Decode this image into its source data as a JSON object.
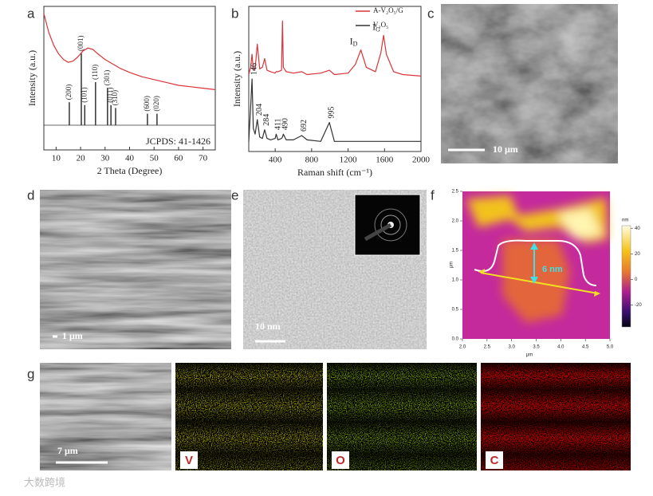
{
  "panel_labels": [
    "a",
    "b",
    "c",
    "d",
    "e",
    "f",
    "g"
  ],
  "chart_data": [
    {
      "type": "line",
      "xlabel": "2 Theta (Degree)",
      "ylabel": "Intensity (a.u.)",
      "xlim": [
        5,
        75
      ],
      "ylim": [
        0,
        100
      ],
      "xticks": [
        10,
        20,
        30,
        40,
        50,
        60,
        70
      ],
      "series": [
        {
          "color": "#d9343a",
          "x": [
            5,
            7,
            9,
            11,
            13,
            15,
            17,
            19,
            21,
            23,
            25,
            27,
            30,
            33,
            36,
            40,
            45,
            50,
            55,
            60,
            65,
            70,
            75
          ],
          "values": [
            95,
            82,
            73,
            67,
            63,
            61,
            62,
            65,
            69,
            71,
            70,
            67,
            63,
            60,
            57,
            54,
            51,
            49,
            47,
            45,
            44,
            43,
            42
          ]
        }
      ],
      "reference": {
        "name": "JCPDS: 41-1426",
        "color": "#333",
        "x": [
          15.4,
          20.3,
          21.7,
          26.1,
          31.0,
          32.4,
          34.3,
          47.3,
          51.2
        ],
        "values": [
          16,
          50,
          14,
          30,
          26,
          14,
          12,
          8,
          8
        ],
        "labels": [
          "(200)",
          "(001)",
          "(101)",
          "(110)",
          "(301)",
          "(011)",
          "(310)",
          "(600)",
          "(020)"
        ]
      }
    },
    {
      "type": "line",
      "xlabel": "Raman shift (cm⁻¹)",
      "ylabel": "Intensity (a.u.)",
      "xlim": [
        110,
        2000
      ],
      "ylim": [
        0,
        100
      ],
      "xticks": [
        400,
        800,
        1200,
        1600,
        2000
      ],
      "x": [
        110,
        130,
        146,
        160,
        180,
        204,
        230,
        260,
        284,
        310,
        350,
        400,
        411,
        430,
        470,
        480,
        490,
        520,
        600,
        692,
        750,
        900,
        995,
        1050,
        1200,
        1280,
        1340,
        1400,
        1500,
        1560,
        1590,
        1620,
        1700,
        1800,
        2000
      ],
      "series": [
        {
          "name": "A-V₂O₅/G",
          "color": "#d9343a",
          "values": [
            53,
            58,
            67,
            56,
            57,
            74,
            57,
            58,
            64,
            56,
            55,
            54,
            55,
            55,
            56,
            90,
            58,
            55,
            54,
            55,
            53,
            54,
            56,
            53,
            54,
            60,
            70,
            58,
            55,
            68,
            80,
            67,
            55,
            53,
            52
          ]
        },
        {
          "name": "V₂O₅",
          "color": "#333",
          "values": [
            7,
            30,
            50,
            16,
            12,
            22,
            10,
            9,
            15,
            9,
            8,
            9,
            12,
            8,
            9,
            10,
            12,
            8,
            8,
            11,
            8,
            7,
            20,
            7,
            7,
            7,
            7,
            7,
            7,
            7,
            7,
            7,
            7,
            7,
            7
          ]
        }
      ],
      "annotations": [
        {
          "x": 1340,
          "text": "I",
          "sub": "D"
        },
        {
          "x": 1590,
          "text": "I",
          "sub": "G"
        }
      ],
      "peak_labels": [
        146,
        204,
        284,
        411,
        490,
        692,
        995
      ]
    }
  ],
  "afm": {
    "xlabel": "μm",
    "ylabel": "μm",
    "xlim": [
      2,
      5
    ],
    "ylim": [
      0,
      2.5
    ],
    "xticks": [
      {
        "value": 2,
        "label": "2.0"
      },
      2.5,
      {
        "value": 3,
        "label": "3.0"
      },
      3.5,
      {
        "value": 4,
        "label": "4.0"
      },
      4.5,
      {
        "value": 5,
        "label": "5.0"
      }
    ],
    "yticks": [
      {
        "value": 0,
        "label": "0.0"
      },
      0.5,
      {
        "value": 1,
        "label": "1.0"
      },
      1.5,
      {
        "value": 2,
        "label": "2.0"
      },
      2.5
    ],
    "colorbar_label": "nm",
    "clim": [
      -37,
      42
    ],
    "colorbar_ticks": [
      40,
      20,
      0,
      -20
    ],
    "annotation": "6 nm"
  },
  "scale_bars": {
    "c": "10 μm",
    "d": "1 μm",
    "e": "10 nm",
    "g": "7 μm"
  },
  "eds_labels": [
    "V",
    "O",
    "C"
  ],
  "watermark": "大数跨境"
}
